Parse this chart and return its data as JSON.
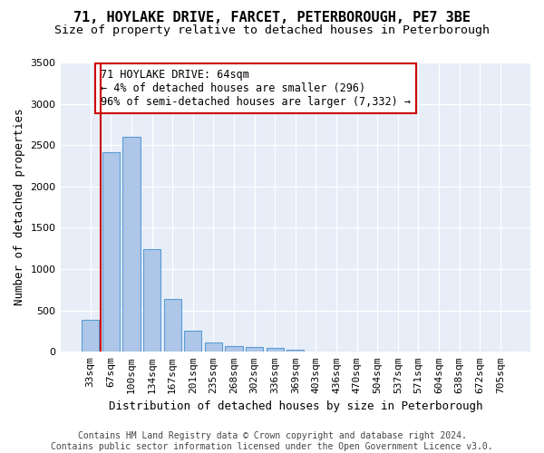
{
  "title": "71, HOYLAKE DRIVE, FARCET, PETERBOROUGH, PE7 3BE",
  "subtitle": "Size of property relative to detached houses in Peterborough",
  "xlabel": "Distribution of detached houses by size in Peterborough",
  "ylabel": "Number of detached properties",
  "categories": [
    "33sqm",
    "67sqm",
    "100sqm",
    "134sqm",
    "167sqm",
    "201sqm",
    "235sqm",
    "268sqm",
    "302sqm",
    "336sqm",
    "369sqm",
    "403sqm",
    "436sqm",
    "470sqm",
    "504sqm",
    "537sqm",
    "571sqm",
    "604sqm",
    "638sqm",
    "672sqm",
    "705sqm"
  ],
  "values": [
    390,
    2420,
    2600,
    1240,
    640,
    260,
    115,
    65,
    55,
    45,
    30,
    0,
    0,
    0,
    0,
    0,
    0,
    0,
    0,
    0,
    0
  ],
  "bar_color": "#aec6e8",
  "bar_edge_color": "#5b9bd5",
  "highlight_color": "#cc0000",
  "annotation_text": "71 HOYLAKE DRIVE: 64sqm\n← 4% of detached houses are smaller (296)\n96% of semi-detached houses are larger (7,332) →",
  "annotation_box_color": "#ffffff",
  "annotation_box_edge": "#cc0000",
  "vline_x": 0.5,
  "ylim": [
    0,
    3500
  ],
  "yticks": [
    0,
    500,
    1000,
    1500,
    2000,
    2500,
    3000,
    3500
  ],
  "bg_color": "#e8eef8",
  "footer": "Contains HM Land Registry data © Crown copyright and database right 2024.\nContains public sector information licensed under the Open Government Licence v3.0.",
  "title_fontsize": 11,
  "subtitle_fontsize": 9.5,
  "xlabel_fontsize": 9,
  "ylabel_fontsize": 9,
  "tick_fontsize": 8,
  "footer_fontsize": 7
}
